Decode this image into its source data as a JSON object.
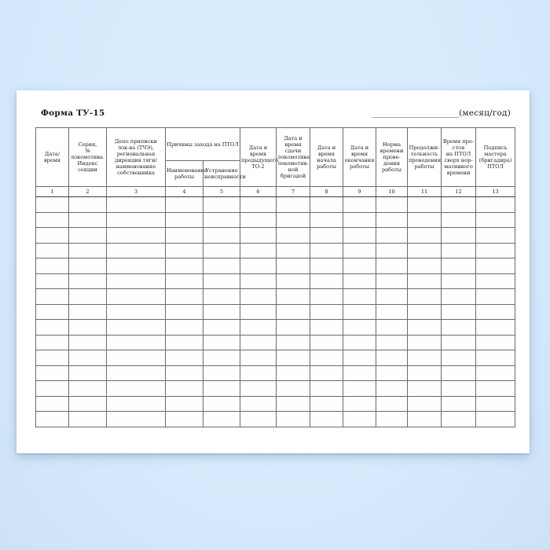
{
  "background_color": "#d7ebfd",
  "document": {
    "form_title": "Форма ТУ-15",
    "period_blank": "_____________________",
    "period_label": "(месяц/год)"
  },
  "table": {
    "group_header": "Причины захода на ПТОЛ",
    "columns": [
      {
        "num": "1",
        "label": "Дата/\nвремя",
        "width": 42
      },
      {
        "num": "2",
        "label": "Серия,\n№ локомотива.\nИндекс секции",
        "width": 48
      },
      {
        "num": "3",
        "label": "Депо приписки\nлок-ва (ТЧЭ),\nрегиональная\nдирекция тяги/\nнаименование\nсобственника",
        "width": 75
      },
      {
        "num": "4",
        "label": "Наименование\nработы",
        "width": 48,
        "grouped": true
      },
      {
        "num": "5",
        "label": "Устранение\nнеисправности",
        "width": 47,
        "grouped": true
      },
      {
        "num": "6",
        "label": "Дата и время\nпредыдущего\nТО-2",
        "width": 46
      },
      {
        "num": "7",
        "label": "Дата и\nвремя\nсдачи\nлокомотива\nлокомотив-\nной\nбригадой",
        "width": 43
      },
      {
        "num": "8",
        "label": "Дата и\nвремя\nначала\nработы",
        "width": 42
      },
      {
        "num": "9",
        "label": "Дата и\nвремя\nокончания\nработы",
        "width": 42
      },
      {
        "num": "10",
        "label": "Норма\nвремени\nпрове-\nдения\nработы",
        "width": 40
      },
      {
        "num": "11",
        "label": "Продолжи-\nтельность\nпроведения\nработы",
        "width": 43
      },
      {
        "num": "12",
        "label": "Время про-\nстоя\nна ПТОЛ\nсверх нор-\nмативного\nвремени",
        "width": 44
      },
      {
        "num": "13",
        "label": "Подпись\nмастера\n(бригадира)\nПТОЛ",
        "width": 50
      }
    ],
    "empty_row_count": 15
  }
}
